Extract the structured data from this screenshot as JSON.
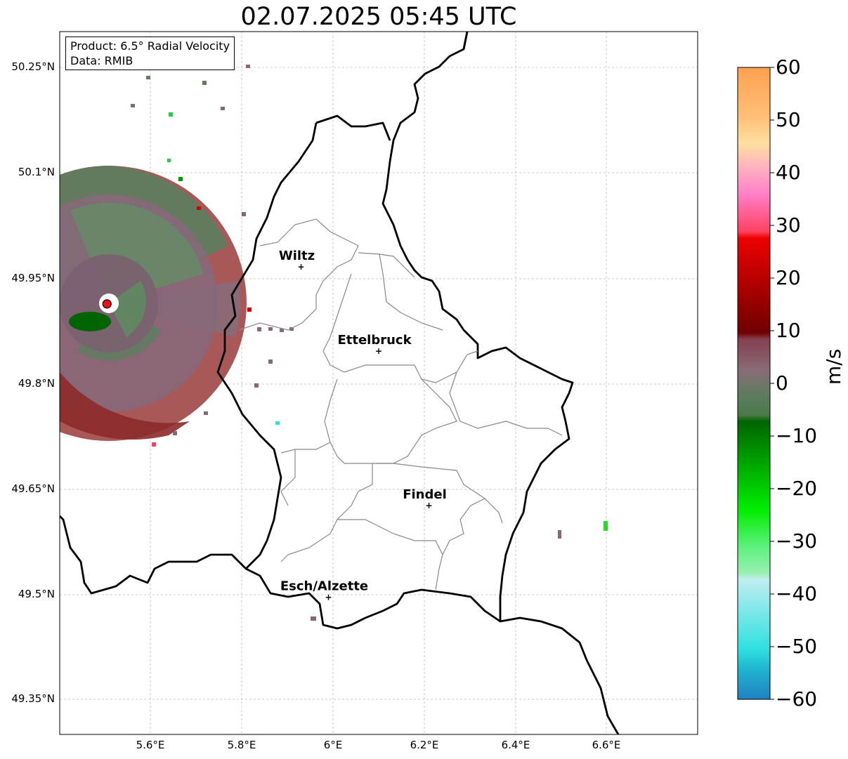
{
  "title": "02.07.2025 05:45 UTC",
  "info_box": {
    "product": "Product: 6.5° Radial Velocity",
    "data": "Data: RMIB"
  },
  "axes": {
    "lat_labels": [
      "50.25°N",
      "50.1°N",
      "49.95°N",
      "49.8°N",
      "49.65°N",
      "49.5°N",
      "49.35°N"
    ],
    "lon_labels": [
      "5.6°E",
      "5.8°E",
      "6°E",
      "6.2°E",
      "6.4°E",
      "6.6°E"
    ]
  },
  "cities": [
    {
      "name": "Wiltz",
      "lon": 5.93,
      "lat": 49.967
    },
    {
      "name": "Ettelbruck",
      "lon": 6.1,
      "lat": 49.847
    },
    {
      "name": "Findel",
      "lon": 6.21,
      "lat": 49.627
    },
    {
      "name": "Esch/Alzette",
      "lon": 5.99,
      "lat": 49.497
    }
  ],
  "radar_site": {
    "lon": 5.505,
    "lat": 49.914,
    "color": "#ee1111"
  },
  "colorbar": {
    "unit": "m/s",
    "ticks": [
      "60",
      "50",
      "40",
      "30",
      "20",
      "10",
      "0",
      "−10",
      "−20",
      "−30",
      "−40",
      "−50",
      "−60"
    ],
    "min": -60,
    "max": 60,
    "colors": {
      "positive_high": "#ffa050",
      "positive_pink": "#ff80c0",
      "positive_red": "#ee0000",
      "positive_dark": "#7a0000",
      "near_zero_neg": "#5a7a5a",
      "negative_green": "#006400",
      "negative_bright": "#00e000",
      "negative_cyan": "#30e0e0",
      "negative_blue": "#2080c0"
    }
  }
}
